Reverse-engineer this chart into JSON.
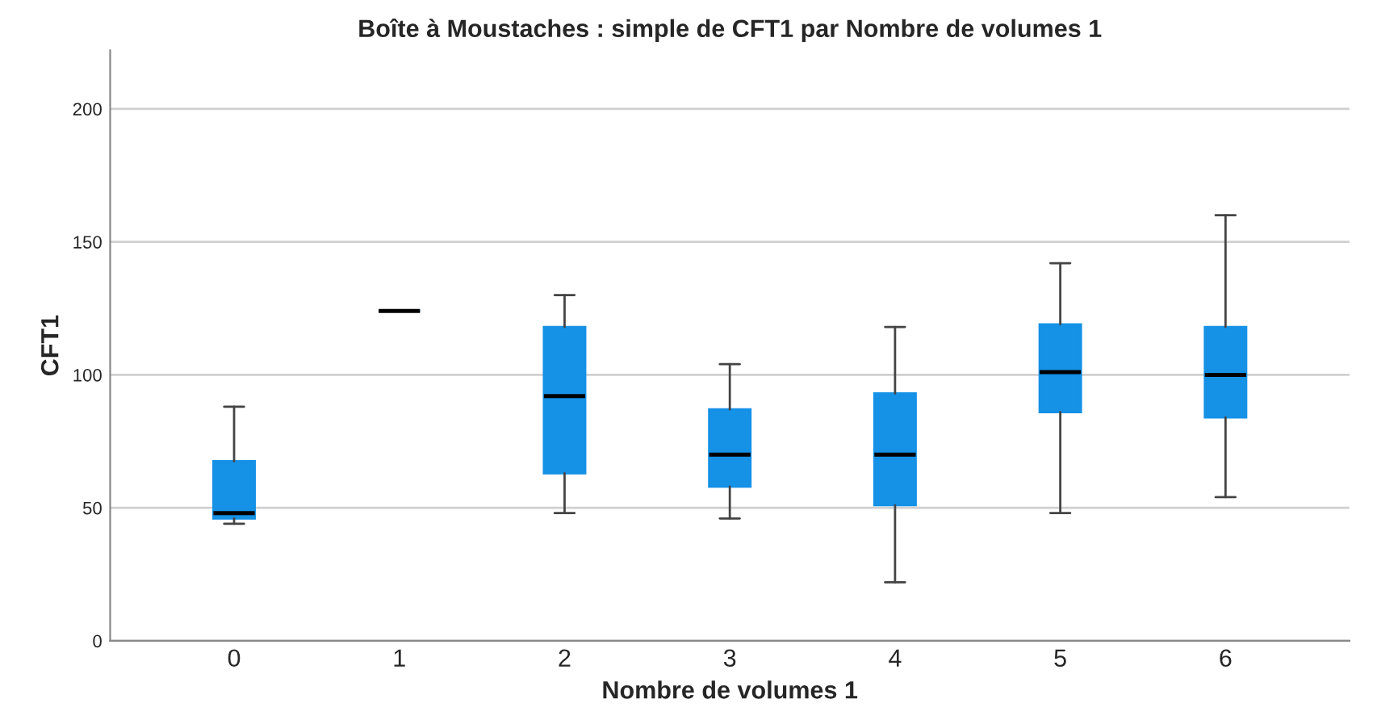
{
  "chart_data": {
    "type": "box",
    "title": "Boîte à Moustaches : simple de CFT1 par Nombre de volumes 1",
    "xlabel": "Nombre de volumes 1",
    "ylabel": "CFT1",
    "categories": [
      "0",
      "1",
      "2",
      "3",
      "4",
      "5",
      "6"
    ],
    "boxes": [
      {
        "low": 44,
        "q1": 46,
        "median": 48,
        "q3": 67.5,
        "high": 88
      },
      {
        "low": 124,
        "q1": 124,
        "median": 124,
        "q3": 124,
        "high": 124
      },
      {
        "low": 48,
        "q1": 63,
        "median": 92,
        "q3": 118,
        "high": 130
      },
      {
        "low": 46,
        "q1": 58,
        "median": 70,
        "q3": 87,
        "high": 104
      },
      {
        "low": 22,
        "q1": 51,
        "median": 70,
        "q3": 93,
        "high": 118
      },
      {
        "low": 48,
        "q1": 86,
        "median": 101,
        "q3": 119,
        "high": 142
      },
      {
        "low": 54,
        "q1": 84,
        "median": 100,
        "q3": 118,
        "high": 160
      }
    ],
    "color": "#1591e6",
    "ylim": [
      0,
      222
    ],
    "yticks": [
      0,
      50,
      100,
      150,
      200
    ],
    "grid": "y"
  }
}
